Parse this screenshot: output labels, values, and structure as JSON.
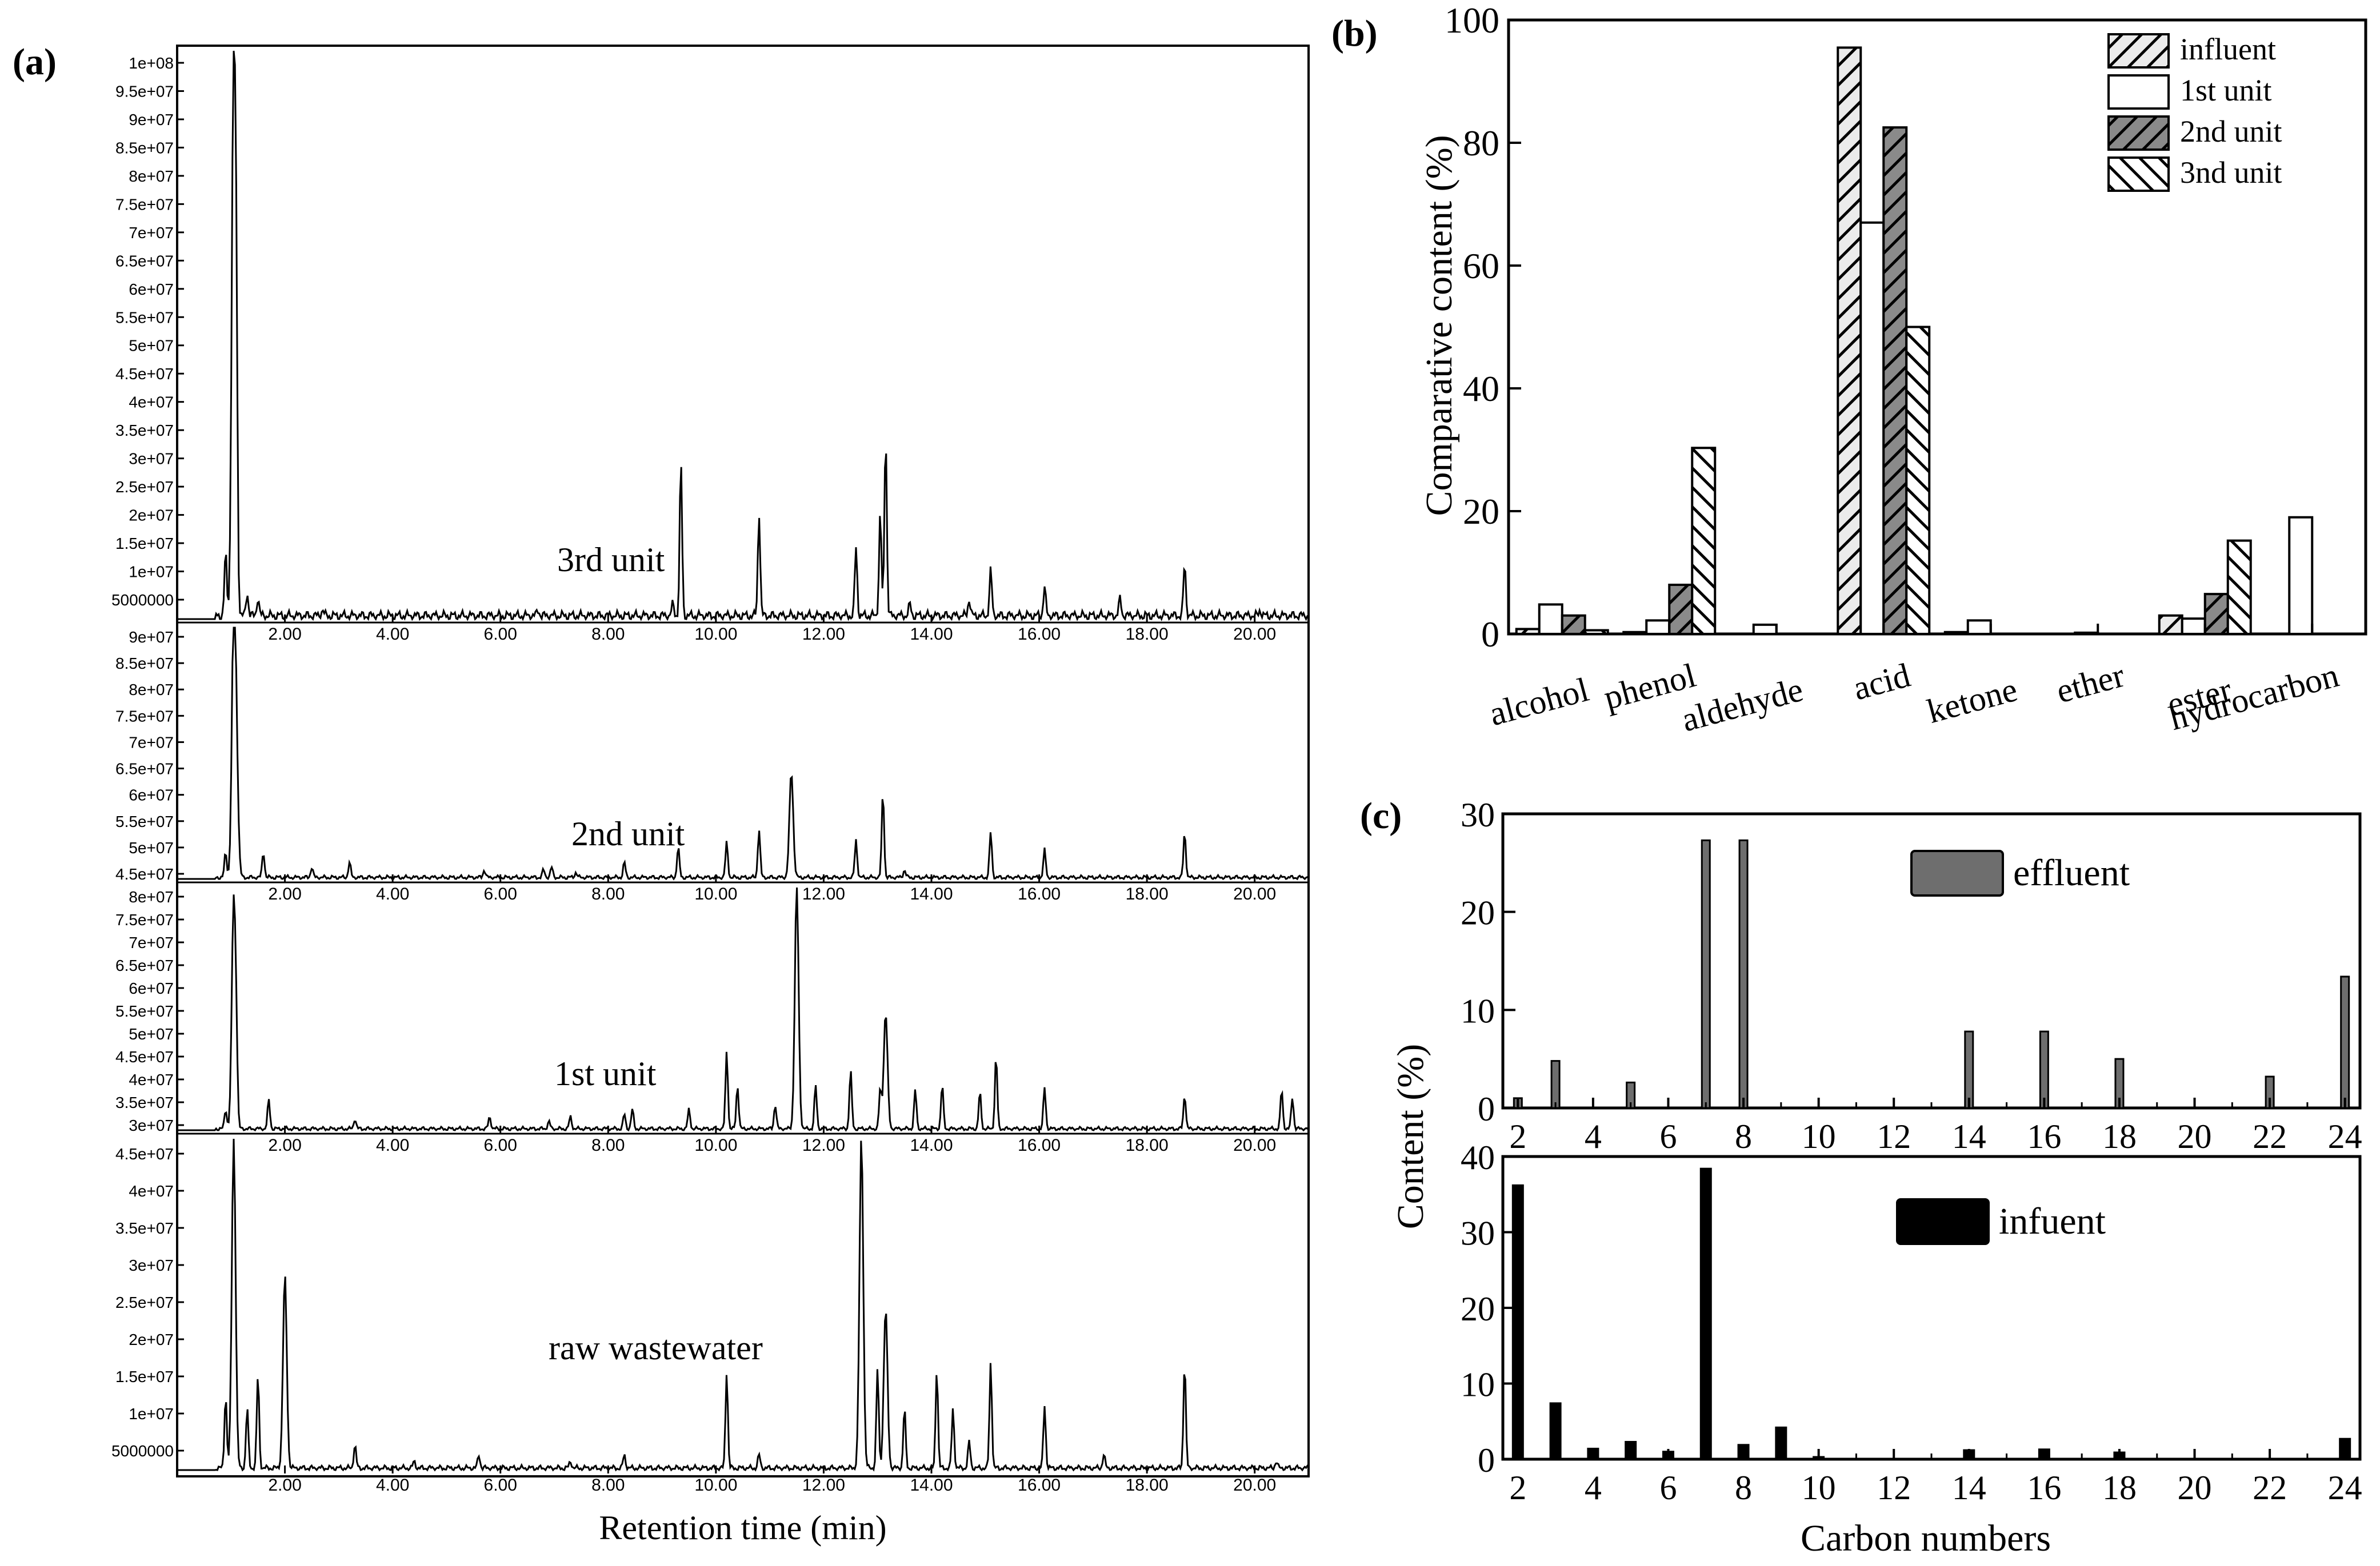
{
  "panels": {
    "a": {
      "letter": "(a)"
    },
    "b": {
      "letter": "(b)"
    },
    "c": {
      "letter": "(c)"
    }
  },
  "chart_data": [
    {
      "id": "a",
      "type": "line",
      "title": "",
      "xlabel": "Retention time (min)",
      "ylabel": "",
      "xlim": [
        0,
        21
      ],
      "xticks": [
        "2.00",
        "4.00",
        "6.00",
        "8.00",
        "10.00",
        "12.00",
        "14.00",
        "16.00",
        "18.00",
        "20.00"
      ],
      "yticks_left": [
        "1e+08",
        "9.5e+07",
        "9e+07",
        "8.5e+07",
        "8e+07",
        "7.5e+07",
        "7e+07",
        "6.5e+07",
        "6e+07",
        "5.5e+07",
        "5e+07",
        "4.5e+07",
        "4e+07",
        "3.5e+07",
        "3e+07",
        "2.5e+07",
        "2e+07",
        "1.5e+07",
        "1e+07",
        "5000000"
      ],
      "series": [
        {
          "name": "3rd unit",
          "peaks": [
            [
              0.9,
              11
            ],
            [
              1.05,
              100
            ],
            [
              1.1,
              35
            ],
            [
              1.3,
              4
            ],
            [
              1.5,
              3
            ],
            [
              2.7,
              1
            ],
            [
              6.7,
              1
            ],
            [
              9.2,
              2
            ],
            [
              9.35,
              27
            ],
            [
              10.8,
              18
            ],
            [
              12.6,
              12
            ],
            [
              13.05,
              18
            ],
            [
              13.15,
              32
            ],
            [
              13.6,
              2
            ],
            [
              14.7,
              3
            ],
            [
              15.1,
              8
            ],
            [
              16.1,
              5
            ],
            [
              17.5,
              3
            ],
            [
              18.7,
              9
            ],
            [
              20.1,
              1
            ]
          ]
        },
        {
          "name": "2nd unit",
          "peaks": [
            [
              0.9,
              10
            ],
            [
              1.05,
              100
            ],
            [
              1.1,
              42
            ],
            [
              1.6,
              10
            ],
            [
              2.5,
              4
            ],
            [
              3.2,
              6
            ],
            [
              5.7,
              3
            ],
            [
              6.8,
              3
            ],
            [
              6.95,
              4
            ],
            [
              7.4,
              2
            ],
            [
              8.3,
              6
            ],
            [
              9.3,
              12
            ],
            [
              10.2,
              14
            ],
            [
              10.8,
              19
            ],
            [
              11.4,
              42
            ],
            [
              12.6,
              15
            ],
            [
              13.1,
              34
            ],
            [
              13.5,
              3
            ],
            [
              15.1,
              18
            ],
            [
              16.1,
              11
            ],
            [
              18.7,
              18
            ]
          ]
        },
        {
          "name": "1st unit",
          "peaks": [
            [
              0.9,
              8
            ],
            [
              1.05,
              95
            ],
            [
              1.1,
              22
            ],
            [
              1.7,
              12
            ],
            [
              3.3,
              4
            ],
            [
              5.8,
              5
            ],
            [
              6.9,
              3
            ],
            [
              7.3,
              5
            ],
            [
              8.3,
              6
            ],
            [
              8.45,
              8
            ],
            [
              9.5,
              8
            ],
            [
              10.2,
              32
            ],
            [
              10.4,
              18
            ],
            [
              11.1,
              10
            ],
            [
              11.5,
              100
            ],
            [
              11.85,
              18
            ],
            [
              12.5,
              24
            ],
            [
              13.05,
              16
            ],
            [
              13.15,
              48
            ],
            [
              13.7,
              16
            ],
            [
              14.2,
              18
            ],
            [
              14.9,
              15
            ],
            [
              15.2,
              30
            ],
            [
              16.1,
              17
            ],
            [
              18.7,
              14
            ],
            [
              20.5,
              16
            ],
            [
              20.7,
              13
            ]
          ]
        },
        {
          "name": "raw wastewater",
          "peaks": [
            [
              0.9,
              22
            ],
            [
              1.05,
              100
            ],
            [
              1.3,
              18
            ],
            [
              1.5,
              28
            ],
            [
              2.0,
              58
            ],
            [
              3.3,
              7
            ],
            [
              4.4,
              2
            ],
            [
              5.6,
              4
            ],
            [
              7.3,
              2
            ],
            [
              8.3,
              4
            ],
            [
              10.2,
              29
            ],
            [
              10.8,
              4
            ],
            [
              12.7,
              100
            ],
            [
              13.0,
              30
            ],
            [
              13.15,
              48
            ],
            [
              13.5,
              18
            ],
            [
              14.1,
              30
            ],
            [
              14.4,
              18
            ],
            [
              14.7,
              8
            ],
            [
              15.1,
              32
            ],
            [
              16.1,
              19
            ],
            [
              17.2,
              4
            ],
            [
              18.7,
              32
            ],
            [
              20.4,
              2
            ]
          ]
        }
      ],
      "annotations": [
        "3rd unit",
        "2nd unit",
        "1st unit",
        "raw wastewater"
      ]
    },
    {
      "id": "b",
      "type": "bar",
      "title": "",
      "xlabel": "",
      "ylabel": "Comparative content (%)",
      "ylim": [
        0,
        100
      ],
      "yticks": [
        "0",
        "20",
        "40",
        "60",
        "80",
        "100"
      ],
      "categories": [
        "alcohol",
        "phenol",
        "aldehyde",
        "acid",
        "ketone",
        "ether",
        "ester",
        "hydrocarbon"
      ],
      "series": [
        {
          "name": "influent",
          "values": [
            0.8,
            0.3,
            0,
            95.5,
            0.3,
            0,
            3.0,
            0
          ]
        },
        {
          "name": "1st unit",
          "values": [
            4.8,
            2.2,
            1.5,
            67.0,
            2.2,
            0.2,
            2.5,
            19.0
          ]
        },
        {
          "name": "2nd unit",
          "values": [
            3.0,
            8.0,
            0,
            82.5,
            0,
            0,
            6.5,
            0
          ]
        },
        {
          "name": "3nd unit",
          "values": [
            0.6,
            30.3,
            0,
            50.0,
            0,
            0,
            15.2,
            0
          ]
        }
      ],
      "legend_position": "top-right"
    },
    {
      "id": "c",
      "type": "bar",
      "title": "",
      "xlabel": "Carbon numbers",
      "ylabel": "Content (%)",
      "xticks": [
        "2",
        "4",
        "6",
        "8",
        "10",
        "12",
        "14",
        "16",
        "18",
        "20",
        "22",
        "24"
      ],
      "subplots": [
        {
          "name": "effluent",
          "color": "#6e6e6e",
          "ylim": [
            0,
            30
          ],
          "yticks": [
            "0",
            "10",
            "20",
            "30"
          ],
          "x": [
            2,
            3,
            5,
            7,
            8,
            14,
            16,
            18,
            22,
            24
          ],
          "values": [
            1.0,
            4.8,
            2.6,
            27.3,
            27.3,
            7.8,
            7.8,
            5.0,
            3.2,
            13.4
          ]
        },
        {
          "name": "infuent",
          "color": "#000000",
          "ylim": [
            0,
            40
          ],
          "yticks": [
            "0",
            "10",
            "20",
            "30",
            "40"
          ],
          "x": [
            2,
            3,
            4,
            5,
            6,
            7,
            8,
            9,
            10,
            14,
            16,
            18,
            24
          ],
          "values": [
            36.2,
            7.4,
            1.4,
            2.3,
            1.0,
            38.4,
            1.9,
            4.2,
            0.3,
            1.2,
            1.3,
            0.9,
            2.7
          ]
        }
      ],
      "legend_position": "top-center"
    }
  ]
}
